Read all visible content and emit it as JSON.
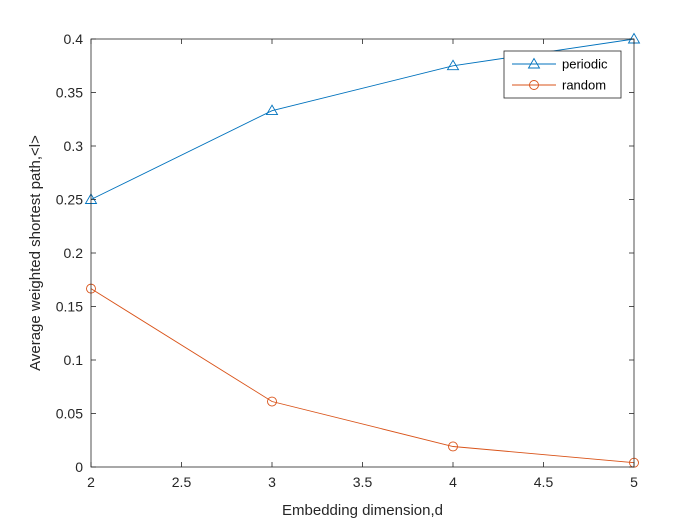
{
  "chart_data": {
    "type": "line",
    "title": "",
    "xlabel": "Embedding dimension,d",
    "ylabel": "Average weighted shortest path,<l>",
    "x": [
      2,
      3,
      4,
      5
    ],
    "xlim": [
      2,
      5
    ],
    "ylim": [
      0,
      0.4
    ],
    "xticks": [
      2,
      2.5,
      3,
      3.5,
      4,
      4.5,
      5
    ],
    "xtick_labels": [
      "2",
      "2.5",
      "3",
      "3.5",
      "4",
      "4.5",
      "5"
    ],
    "yticks": [
      0,
      0.05,
      0.1,
      0.15,
      0.2,
      0.25,
      0.3,
      0.35,
      0.4
    ],
    "ytick_labels": [
      "0",
      "0.05",
      "0.1",
      "0.15",
      "0.2",
      "0.25",
      "0.3",
      "0.35",
      "0.4"
    ],
    "grid": false,
    "legend_position": "top-right",
    "series": [
      {
        "name": "periodic",
        "values": [
          0.25,
          0.333,
          0.375,
          0.4
        ],
        "color": "#0072BD",
        "marker": "triangle"
      },
      {
        "name": "random",
        "values": [
          0.1667,
          0.0612,
          0.0192,
          0.004
        ],
        "color": "#D95319",
        "marker": "circle"
      }
    ]
  }
}
